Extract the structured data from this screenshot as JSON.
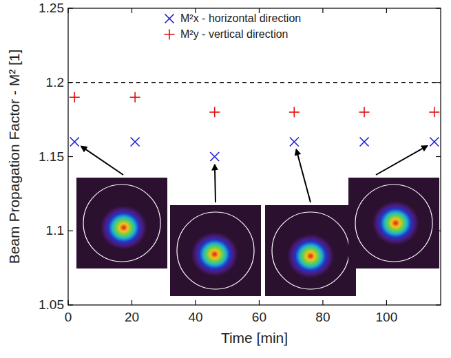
{
  "chart_data": {
    "type": "scatter",
    "x_label": "Time [min]",
    "y_label": "Beam Propagation Factor - M² [1]",
    "xlim": [
      0,
      117
    ],
    "xticks": [
      0,
      20,
      40,
      60,
      80,
      100
    ],
    "ylim": [
      1.05,
      1.25
    ],
    "yticks": [
      1.05,
      1.1,
      1.15,
      1.2,
      1.25
    ],
    "threshold": 1.2,
    "legend": "top",
    "grid": false,
    "series": [
      {
        "name": "M²x - horizontal direction",
        "color": "#1c1cd6",
        "marker": "cross",
        "x": [
          2,
          21,
          46,
          71,
          93,
          115
        ],
        "values": [
          1.16,
          1.16,
          1.15,
          1.16,
          1.16,
          1.16
        ]
      },
      {
        "name": "M²y - vertical direction",
        "color": "#e01010",
        "marker": "plus",
        "x": [
          2,
          21,
          46,
          71,
          93,
          115
        ],
        "values": [
          1.19,
          1.19,
          1.18,
          1.18,
          1.18,
          1.18
        ]
      }
    ]
  }
}
